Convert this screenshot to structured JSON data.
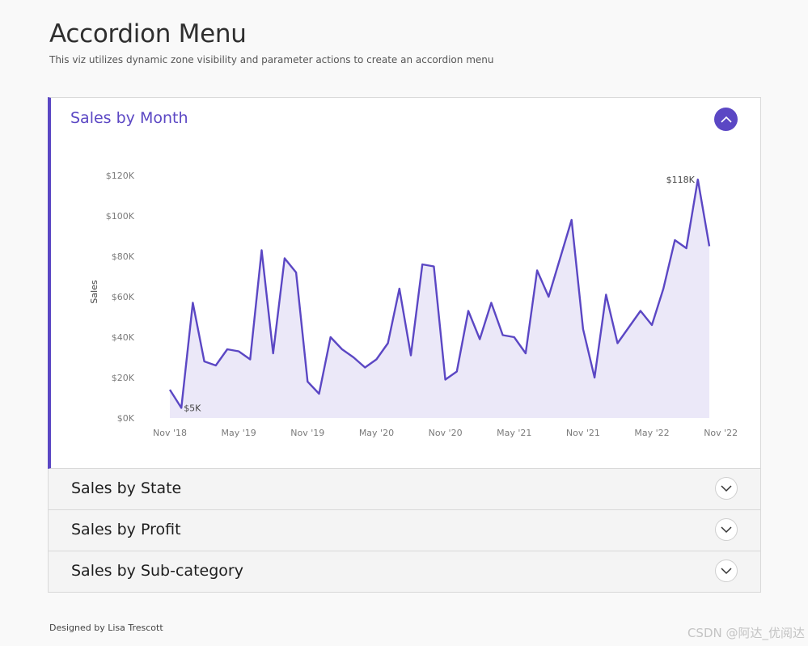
{
  "header": {
    "title": "Accordion Menu",
    "subtitle": "This viz utilizes dynamic zone visibility and parameter actions to create an accordion menu"
  },
  "accordion": {
    "open_panel": {
      "title": "Sales by Month",
      "button_icon": "chevron-up-icon"
    },
    "closed_panels": [
      {
        "title": "Sales by State",
        "button_icon": "chevron-down-icon"
      },
      {
        "title": "Sales by Profit",
        "button_icon": "chevron-down-icon"
      },
      {
        "title": "Sales by Sub-category",
        "button_icon": "chevron-down-icon"
      }
    ]
  },
  "colors": {
    "accent": "#5b47c4",
    "area_fill": "#ebe8f8",
    "line": "#5b47c4"
  },
  "chart_data": {
    "type": "area",
    "title": "Sales by Month",
    "ylabel": "Sales",
    "xlabel": "",
    "ylim": [
      0,
      120000
    ],
    "yticks": [
      0,
      20000,
      40000,
      60000,
      80000,
      100000,
      120000
    ],
    "ytick_labels": [
      "$0K",
      "$20K",
      "$40K",
      "$60K",
      "$80K",
      "$100K",
      "$120K"
    ],
    "xtick_labels": [
      {
        "label": "Nov '18",
        "index": 0
      },
      {
        "label": "May '19",
        "index": 6
      },
      {
        "label": "Nov '19",
        "index": 12
      },
      {
        "label": "May '20",
        "index": 18
      },
      {
        "label": "Nov '20",
        "index": 24
      },
      {
        "label": "May '21",
        "index": 30
      },
      {
        "label": "Nov '21",
        "index": 36
      },
      {
        "label": "May '22",
        "index": 42
      },
      {
        "label": "Nov '22",
        "index": 48
      }
    ],
    "series": [
      {
        "name": "Sales",
        "values": [
          14000,
          5000,
          57000,
          28000,
          26000,
          34000,
          33000,
          29000,
          83000,
          32000,
          79000,
          72000,
          18000,
          12000,
          40000,
          34000,
          30000,
          25000,
          29000,
          37000,
          64000,
          31000,
          76000,
          75000,
          19000,
          23000,
          53000,
          39000,
          57000,
          41000,
          40000,
          32000,
          73000,
          60000,
          79000,
          98000,
          44000,
          20000,
          61000,
          37000,
          45000,
          53000,
          46000,
          64000,
          88000,
          84000,
          118000,
          85000
        ]
      }
    ],
    "annotations": [
      {
        "index": 1,
        "text": "$5K"
      },
      {
        "index": 46,
        "text": "$118K"
      }
    ]
  },
  "footer": {
    "credit": "Designed by Lisa Trescott"
  },
  "watermark": {
    "text": "CSDN @阿达_优阅达"
  }
}
